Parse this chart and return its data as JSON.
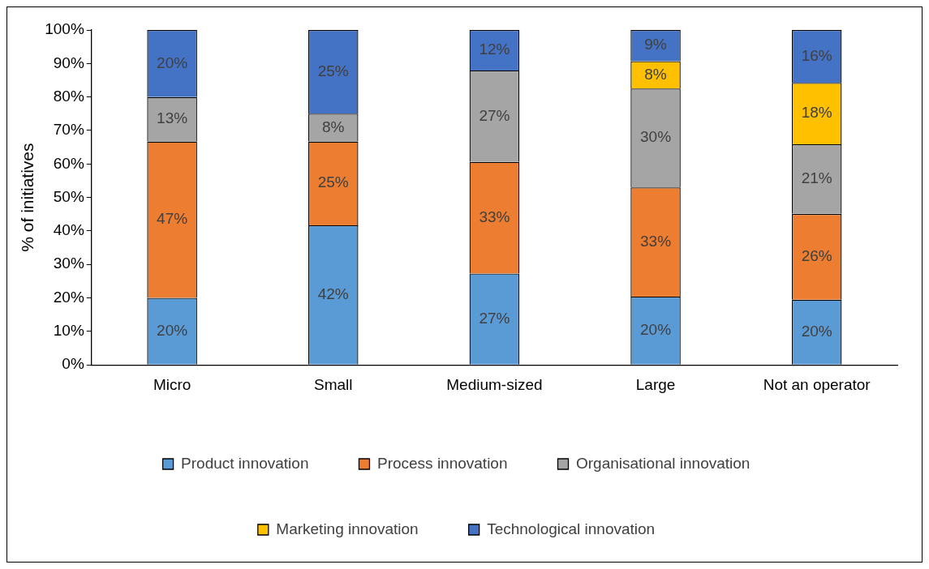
{
  "chart_data": {
    "type": "bar",
    "stacked": true,
    "ylabel": "% of initiatives",
    "categories": [
      "Micro",
      "Small",
      "Medium-sized",
      "Large",
      "Not an operator"
    ],
    "series": [
      {
        "name": "Product innovation",
        "color": "#5b9bd5",
        "values": [
          20,
          41.7,
          27.3,
          20.4,
          19.5
        ],
        "value_labels": [
          "20%",
          "42%",
          "27%",
          "20%",
          "20%"
        ]
      },
      {
        "name": "Process innovation",
        "color": "#ed7d31",
        "values": [
          46.7,
          25,
          33.3,
          32.6,
          25.6
        ],
        "value_labels": [
          "47%",
          "25%",
          "33%",
          "33%",
          "26%"
        ]
      },
      {
        "name": "Organisational innovation",
        "color": "#a5a5a5",
        "values": [
          13.3,
          8.3,
          27.3,
          29.5,
          20.8
        ],
        "value_labels": [
          "13%",
          "8%",
          "27%",
          "30%",
          "21%"
        ]
      },
      {
        "name": "Marketing innovation",
        "color": "#ffc000",
        "values": [
          null,
          null,
          null,
          8.2,
          18.3
        ],
        "value_labels": [
          null,
          null,
          null,
          "8%",
          "18%"
        ]
      },
      {
        "name": "Technological innovation",
        "color": "#4472c4",
        "values": [
          20,
          25,
          12.1,
          9.3,
          15.8
        ],
        "value_labels": [
          "20%",
          "25%",
          "12%",
          "9%",
          "16%"
        ]
      }
    ],
    "ylim": [
      0,
      100
    ],
    "yticks": [
      {
        "value": 0,
        "label": "0%"
      },
      {
        "value": 10,
        "label": "10%"
      },
      {
        "value": 20,
        "label": "20%"
      },
      {
        "value": 30,
        "label": "30%"
      },
      {
        "value": 40,
        "label": "40%"
      },
      {
        "value": 50,
        "label": "50%"
      },
      {
        "value": 60,
        "label": "60%"
      },
      {
        "value": 70,
        "label": "70%"
      },
      {
        "value": 80,
        "label": "80%"
      },
      {
        "value": 90,
        "label": "90%"
      },
      {
        "value": 100,
        "label": "100%"
      }
    ],
    "grid": false,
    "legend": "bottom"
  }
}
